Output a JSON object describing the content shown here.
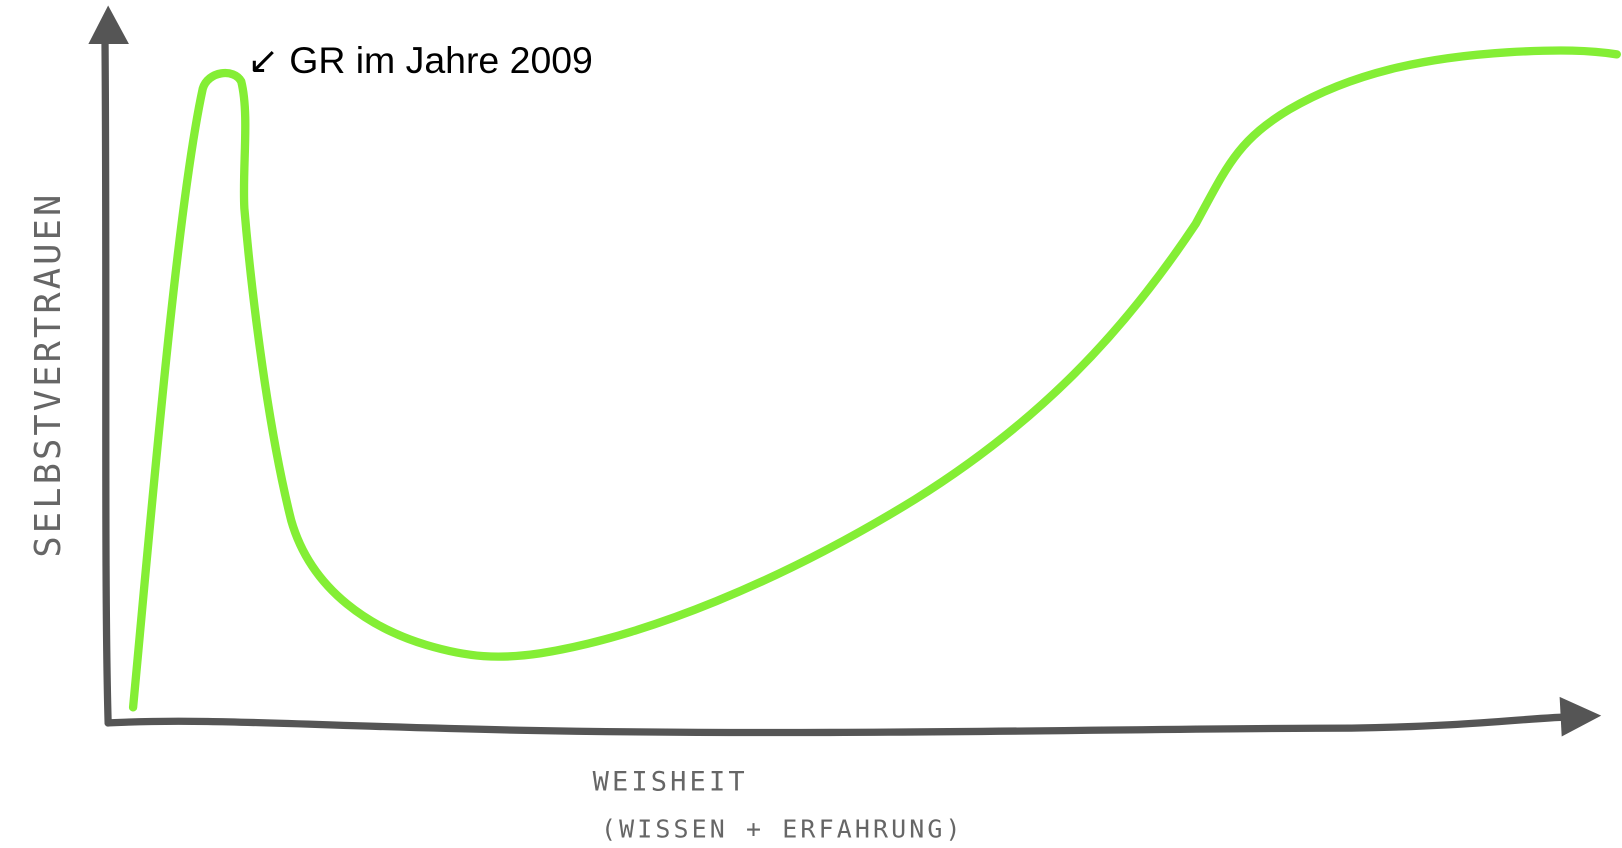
{
  "annotation": "↙ GR im Jahre 2009",
  "y_axis_label": "SELBSTVERTRAUEN",
  "x_axis_label": {
    "line1": "WEISHEIT",
    "line2": "(WISSEN + ERFAHRUNG)"
  }
}
